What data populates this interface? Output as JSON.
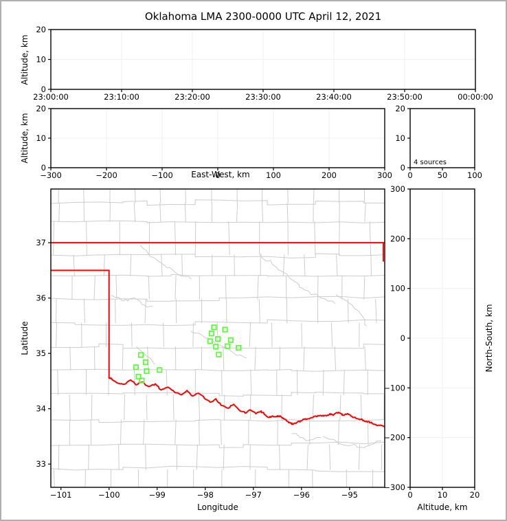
{
  "title": "Oklahoma LMA 2300-0000 UTC April 12, 2021",
  "colors": {
    "state_border": "#ff0000",
    "county_line": "#cccccc",
    "river_line": "#cccccc",
    "station_marker": "#55ff33",
    "gridline": "#efefef",
    "frame": "#000000",
    "page_border": "#b0b0b0"
  },
  "chart_data": [
    {
      "id": "time_height",
      "type": "scatter",
      "title": "",
      "xlabel": "",
      "ylabel": "Altitude, km",
      "xlim": [
        0,
        3600
      ],
      "ylim": [
        0,
        20
      ],
      "xticks": {
        "values": [
          0,
          600,
          1200,
          1800,
          2400,
          3000,
          3600
        ],
        "labels": [
          "23:00:00",
          "23:10:00",
          "23:20:00",
          "23:30:00",
          "23:40:00",
          "23:50:00",
          "00:00:00"
        ]
      },
      "yticks": {
        "values": [
          0,
          10,
          20
        ],
        "labels": [
          "0",
          "10",
          "20"
        ]
      },
      "grid": true,
      "points": []
    },
    {
      "id": "ew_height",
      "type": "scatter",
      "title": "",
      "xlabel": "East-West, km",
      "ylabel": "Altitude, km",
      "xlim": [
        -300,
        300
      ],
      "ylim": [
        0,
        20
      ],
      "xticks": {
        "values": [
          -300,
          -200,
          -100,
          0,
          100,
          200,
          300
        ],
        "labels": [
          "−300",
          "−200",
          "−100",
          "0",
          "100",
          "200",
          "300"
        ]
      },
      "yticks": {
        "values": [
          0,
          10,
          20
        ],
        "labels": [
          "0",
          "10",
          "20"
        ]
      },
      "grid": true,
      "points": []
    },
    {
      "id": "source_histogram",
      "type": "scatter",
      "title": "",
      "xlabel": "",
      "ylabel": "",
      "annotation": "4 sources",
      "xlim": [
        0,
        100
      ],
      "ylim": [
        0,
        20
      ],
      "xticks": {
        "values": [
          0,
          50,
          100
        ],
        "labels": [
          "0",
          "50",
          "100"
        ]
      },
      "yticks": {
        "values": [
          0,
          10,
          20
        ],
        "labels": [
          "0",
          "10",
          "20"
        ]
      },
      "grid": false,
      "points": []
    },
    {
      "id": "plan_view_map",
      "type": "scatter",
      "title": "",
      "xlabel": "Longitude",
      "ylabel": "Latitude",
      "xlim": [
        -101.21,
        -94.27
      ],
      "ylim": [
        32.58,
        37.97
      ],
      "xticks": {
        "values": [
          -101,
          -100,
          -99,
          -98,
          -97,
          -96,
          -95
        ],
        "labels": [
          "−101",
          "−100",
          "−99",
          "−98",
          "−97",
          "−96",
          "−95"
        ]
      },
      "yticks": {
        "values": [
          33,
          34,
          35,
          36,
          37
        ],
        "labels": [
          "33",
          "34",
          "35",
          "36",
          "37"
        ]
      },
      "grid": false,
      "stations": [
        [
          -97.82,
          35.47
        ],
        [
          -97.59,
          35.43
        ],
        [
          -97.87,
          35.36
        ],
        [
          -97.74,
          35.26
        ],
        [
          -97.9,
          35.22
        ],
        [
          -97.47,
          35.24
        ],
        [
          -97.78,
          35.12
        ],
        [
          -97.54,
          35.13
        ],
        [
          -97.31,
          35.1
        ],
        [
          -97.72,
          34.98
        ],
        [
          -99.34,
          34.97
        ],
        [
          -99.24,
          34.84
        ],
        [
          -99.44,
          34.75
        ],
        [
          -99.22,
          34.68
        ],
        [
          -98.95,
          34.7
        ],
        [
          -99.39,
          34.58
        ],
        [
          -99.32,
          34.51
        ]
      ],
      "state_border": {
        "north_lat": 37.0,
        "panhandle_south_lat": 36.5,
        "panhandle_east_lon": -100.0,
        "panhandle_corner_lat": 34.56,
        "east_lon": -94.3,
        "east_lat_range": [
          36.67,
          37.0
        ],
        "red_river": [
          [
            -100.0,
            34.56
          ],
          [
            -99.95,
            34.55
          ],
          [
            -99.84,
            34.47
          ],
          [
            -99.7,
            34.44
          ],
          [
            -99.55,
            34.52
          ],
          [
            -99.44,
            34.43
          ],
          [
            -99.31,
            34.48
          ],
          [
            -99.17,
            34.4
          ],
          [
            -99.04,
            34.45
          ],
          [
            -98.92,
            34.34
          ],
          [
            -98.78,
            34.39
          ],
          [
            -98.64,
            34.3
          ],
          [
            -98.5,
            34.25
          ],
          [
            -98.38,
            34.33
          ],
          [
            -98.27,
            34.23
          ],
          [
            -98.14,
            34.28
          ],
          [
            -98.02,
            34.19
          ],
          [
            -97.9,
            34.12
          ],
          [
            -97.78,
            34.18
          ],
          [
            -97.67,
            34.06
          ],
          [
            -97.52,
            34.01
          ],
          [
            -97.41,
            34.08
          ],
          [
            -97.3,
            33.98
          ],
          [
            -97.17,
            33.92
          ],
          [
            -97.07,
            33.98
          ],
          [
            -96.95,
            33.91
          ],
          [
            -96.84,
            33.96
          ],
          [
            -96.74,
            33.88
          ],
          [
            -96.67,
            33.84
          ],
          [
            -96.6,
            33.87
          ],
          [
            -96.52,
            33.86
          ],
          [
            -96.45,
            33.87
          ],
          [
            -96.38,
            33.82
          ],
          [
            -96.31,
            33.78
          ],
          [
            -96.24,
            33.75
          ],
          [
            -96.17,
            33.72
          ],
          [
            -96.1,
            33.75
          ],
          [
            -96.02,
            33.78
          ],
          [
            -95.95,
            33.81
          ],
          [
            -95.84,
            33.82
          ],
          [
            -95.74,
            33.86
          ],
          [
            -95.64,
            33.87
          ],
          [
            -95.55,
            33.88
          ],
          [
            -95.48,
            33.87
          ],
          [
            -95.41,
            33.91
          ],
          [
            -95.34,
            33.88
          ],
          [
            -95.27,
            33.93
          ],
          [
            -95.2,
            33.92
          ],
          [
            -95.13,
            33.88
          ],
          [
            -95.05,
            33.91
          ],
          [
            -94.98,
            33.88
          ],
          [
            -94.91,
            33.84
          ],
          [
            -94.84,
            33.82
          ],
          [
            -94.77,
            33.81
          ],
          [
            -94.7,
            33.78
          ],
          [
            -94.63,
            33.76
          ],
          [
            -94.56,
            33.75
          ],
          [
            -94.48,
            33.72
          ],
          [
            -94.41,
            33.7
          ],
          [
            -94.34,
            33.7
          ],
          [
            -94.27,
            33.67
          ]
        ]
      },
      "county_rows": [
        32.9,
        33.35,
        33.8,
        34.25,
        34.7,
        35.12,
        35.55,
        35.98,
        36.4,
        36.78,
        37.38,
        37.72
      ],
      "rivers": [
        [
          [
            -99.35,
            36.95
          ],
          [
            -99.05,
            36.72
          ],
          [
            -98.8,
            36.55
          ],
          [
            -98.55,
            36.42
          ],
          [
            -98.3,
            36.35
          ]
        ],
        [
          [
            -99.95,
            36.05
          ],
          [
            -99.7,
            35.95
          ],
          [
            -99.5,
            36.0
          ],
          [
            -99.28,
            35.88
          ],
          [
            -99.1,
            35.85
          ]
        ],
        [
          [
            -96.85,
            36.8
          ],
          [
            -96.6,
            36.6
          ],
          [
            -96.35,
            36.45
          ],
          [
            -96.1,
            36.28
          ],
          [
            -95.95,
            36.15
          ],
          [
            -95.6,
            36.0
          ],
          [
            -95.3,
            35.9
          ]
        ],
        [
          [
            -95.28,
            36.06
          ],
          [
            -95.0,
            35.9
          ],
          [
            -94.78,
            35.72
          ],
          [
            -94.65,
            35.5
          ]
        ],
        [
          [
            -98.3,
            35.4
          ],
          [
            -98.0,
            35.28
          ],
          [
            -97.7,
            35.15
          ],
          [
            -97.4,
            35.0
          ],
          [
            -97.15,
            34.92
          ]
        ],
        [
          [
            -99.42,
            35.12
          ],
          [
            -99.22,
            34.95
          ],
          [
            -99.05,
            34.8
          ]
        ],
        [
          [
            -95.55,
            33.5
          ],
          [
            -95.15,
            33.35
          ],
          [
            -94.7,
            33.3
          ],
          [
            -94.35,
            33.42
          ]
        ],
        [
          [
            -96.2,
            33.55
          ],
          [
            -95.9,
            33.42
          ],
          [
            -95.6,
            33.48
          ]
        ]
      ]
    },
    {
      "id": "ns_height",
      "type": "scatter",
      "title": "",
      "xlabel": "Altitude, km",
      "ylabel": "North-South, km",
      "xlim": [
        0,
        20
      ],
      "ylim": [
        -300,
        300
      ],
      "xticks": {
        "values": [
          0,
          10,
          20
        ],
        "labels": [
          "0",
          "10",
          "20"
        ]
      },
      "yticks": {
        "values": [
          300,
          200,
          100,
          0,
          -100,
          -200,
          -300
        ],
        "labels": [
          "300",
          "200",
          "100",
          "0",
          "−100",
          "−200",
          "−300"
        ]
      },
      "grid": true,
      "points": []
    }
  ]
}
